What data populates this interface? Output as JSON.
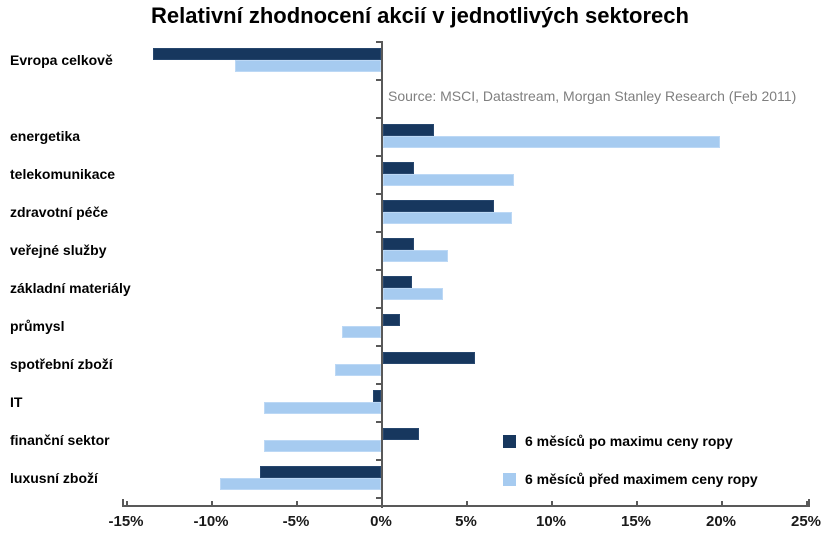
{
  "title": "Relativní zhodnocení akcií v jednotlivých sektorech",
  "source": "Source: MSCI, Datastream, Morgan Stanley Research (Feb 2011)",
  "colors": {
    "series_po": "#17375e",
    "series_pred": "#a6cbf0",
    "axis": "#595959",
    "source_text": "#7f7f7f"
  },
  "legend": {
    "po_label": "6 měsíců po maximu ceny ropy",
    "pred_label": "6 měsíců před maximem ceny ropy"
  },
  "chart_data": {
    "type": "bar",
    "orientation": "horizontal",
    "title": "Relativní zhodnocení akcií v jednotlivých sektorech",
    "xlabel": "",
    "ylabel": "",
    "xlim": [
      -15,
      25
    ],
    "x_tick_labels": [
      "-15%",
      "-10%",
      "-5%",
      "0%",
      "5%",
      "10%",
      "15%",
      "20%",
      "25%"
    ],
    "x_tick_values": [
      -15,
      -10,
      -5,
      0,
      5,
      10,
      15,
      20,
      25
    ],
    "grid": false,
    "legend_position": "inside-bottom-right",
    "categories": [
      "Evropa celkově",
      "energetika",
      "telekomunikace",
      "zdravotní péče",
      "veřejné služby",
      "základní materiály",
      "průmysl",
      "spotřební zboží",
      "IT",
      "finanční sektor",
      "luxusní zboží"
    ],
    "row_slots": [
      0,
      2,
      3,
      4,
      5,
      6,
      7,
      8,
      9,
      10,
      11
    ],
    "series": [
      {
        "name": "6 měsíců po maximu ceny ropy",
        "color": "#17375e",
        "values": [
          -13.4,
          3.0,
          1.8,
          6.5,
          1.8,
          1.7,
          1.0,
          5.4,
          -0.5,
          2.1,
          -7.1
        ]
      },
      {
        "name": "6 měsíců před maximem ceny ropy",
        "color": "#a6cbf0",
        "values": [
          -8.6,
          19.8,
          7.7,
          7.6,
          3.8,
          3.5,
          -2.3,
          -2.7,
          -6.9,
          -6.9,
          -9.5
        ]
      }
    ]
  }
}
